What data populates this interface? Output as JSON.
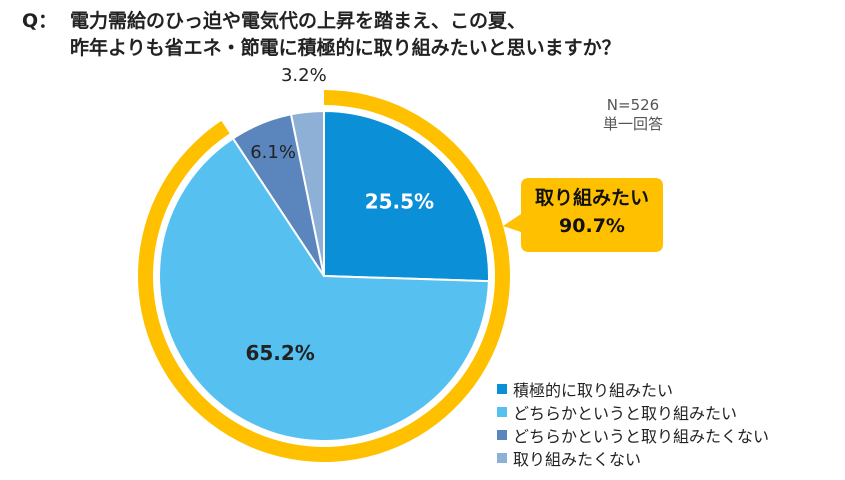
{
  "title": {
    "q_label": "Q：",
    "line1": "電力需給のひっ迫や電気代の上昇を踏まえ、この夏、",
    "line2": "昨年よりも省エネ・節電に積極的に取り組みたいと思いますか？"
  },
  "meta": {
    "sample": "N=526",
    "answer_type": "単一回答"
  },
  "callout": {
    "label": "取り組みたい",
    "value": "90.7%",
    "color": "#ffc000"
  },
  "chart_data": {
    "type": "pie",
    "series": [
      {
        "name": "積極的に取り組みたい",
        "value": 25.5,
        "label": "25.5%",
        "color": "#0b8fd6"
      },
      {
        "name": "どちらかというと取り組みたい",
        "value": 65.2,
        "label": "65.2%",
        "color": "#56c1f0"
      },
      {
        "name": "どちらかというと取り組みたくない",
        "value": 6.1,
        "label": "6.1%",
        "color": "#5b86bd"
      },
      {
        "name": "取り組みたくない",
        "value": 3.2,
        "label": "3.2%",
        "color": "#8fb0d6"
      }
    ],
    "legend_position": "bottom-right"
  }
}
